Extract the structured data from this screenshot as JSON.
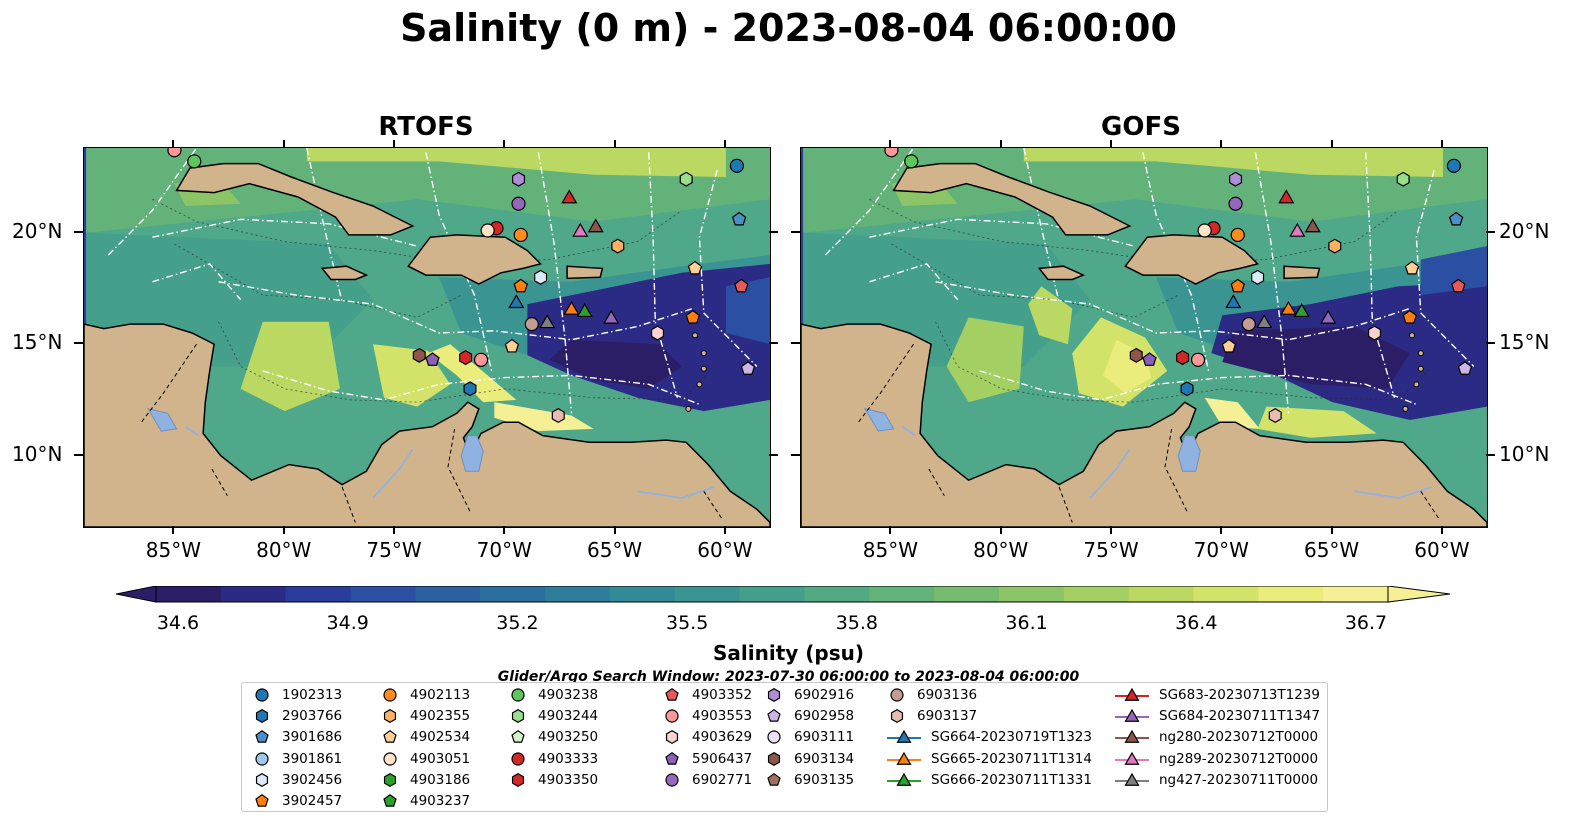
{
  "title": "Salinity (0 m) - 2023-08-04 06:00:00",
  "panels": [
    {
      "title": "RTOFS"
    },
    {
      "title": "GOFS"
    }
  ],
  "axes": {
    "x_ticks": [
      "85°W",
      "80°W",
      "75°W",
      "70°W",
      "65°W",
      "60°W"
    ],
    "y_ticks": [
      "20°N",
      "15°N",
      "10°N"
    ]
  },
  "colorbar": {
    "label": "Salinity (psu)",
    "ticks": [
      "34.6",
      "34.9",
      "35.2",
      "35.5",
      "35.8",
      "36.1",
      "36.4",
      "36.7"
    ],
    "colors": [
      "#2c1e66",
      "#2b2b86",
      "#2a3c9c",
      "#2b4fa2",
      "#2b60a1",
      "#2c6f9e",
      "#2f7d9b",
      "#338a97",
      "#3a9592",
      "#45a08b",
      "#52a983",
      "#62b27a",
      "#75bc70",
      "#8bc567",
      "#a3cf63",
      "#bbd962",
      "#d3e36a",
      "#eaec7c",
      "#f5ef95"
    ]
  },
  "search_window": "Glider/Argo Search Window: 2023-07-30 06:00:00 to 2023-08-04 06:00:00",
  "legend": [
    {
      "label": "1902313",
      "marker": "circle",
      "color": "#1f77b4"
    },
    {
      "label": "2903766",
      "marker": "hexagon",
      "color": "#1f77b4"
    },
    {
      "label": "3901686",
      "marker": "pentagon",
      "color": "#4a90c8"
    },
    {
      "label": "3901861",
      "marker": "circle",
      "color": "#9ec9ec"
    },
    {
      "label": "3902456",
      "marker": "hexagon",
      "color": "#dcebf7"
    },
    {
      "label": "3902457",
      "marker": "pentagon",
      "color": "#ff7f0e"
    },
    {
      "label": "4902113",
      "marker": "circle",
      "color": "#ff8c1a"
    },
    {
      "label": "4902355",
      "marker": "hexagon",
      "color": "#ffb062"
    },
    {
      "label": "4902534",
      "marker": "pentagon",
      "color": "#ffcf95"
    },
    {
      "label": "4903051",
      "marker": "circle",
      "color": "#ffe5c8"
    },
    {
      "label": "4903186",
      "marker": "hexagon",
      "color": "#2ca02c"
    },
    {
      "label": "4903237",
      "marker": "pentagon",
      "color": "#2ca02c"
    },
    {
      "label": "4903238",
      "marker": "circle",
      "color": "#5fc65c"
    },
    {
      "label": "4903244",
      "marker": "hexagon",
      "color": "#98df8a"
    },
    {
      "label": "4903250",
      "marker": "pentagon",
      "color": "#d2f2c7"
    },
    {
      "label": "4903333",
      "marker": "circle",
      "color": "#d62728"
    },
    {
      "label": "4903350",
      "marker": "hexagon",
      "color": "#d62728"
    },
    {
      "label": "4903352",
      "marker": "pentagon",
      "color": "#e85a5a"
    },
    {
      "label": "4903553",
      "marker": "circle",
      "color": "#ff9896"
    },
    {
      "label": "4903629",
      "marker": "hexagon",
      "color": "#ffd2d1"
    },
    {
      "label": "5906437",
      "marker": "pentagon",
      "color": "#8a5fb8"
    },
    {
      "label": "6902771",
      "marker": "circle",
      "color": "#9467bd"
    },
    {
      "label": "6902916",
      "marker": "hexagon",
      "color": "#b18cd6"
    },
    {
      "label": "6902958",
      "marker": "pentagon",
      "color": "#cdb5e8"
    },
    {
      "label": "6903111",
      "marker": "circle",
      "color": "#ebe0f5"
    },
    {
      "label": "6903134",
      "marker": "hexagon",
      "color": "#8c564b"
    },
    {
      "label": "6903135",
      "marker": "pentagon",
      "color": "#a07060"
    },
    {
      "label": "6903136",
      "marker": "circle",
      "color": "#c49c94"
    },
    {
      "label": "6903137",
      "marker": "hexagon",
      "color": "#e8bcb0"
    },
    {
      "label": "SG664-20230719T1323",
      "marker": "triangle",
      "color": "#1f77b4",
      "line": true
    },
    {
      "label": "SG665-20230711T1314",
      "marker": "triangle",
      "color": "#ff7f0e",
      "line": true
    },
    {
      "label": "SG666-20230711T1331",
      "marker": "triangle",
      "color": "#2ca02c",
      "line": true
    },
    {
      "label": "SG683-20230713T1239",
      "marker": "triangle",
      "color": "#d62728",
      "line": true
    },
    {
      "label": "SG684-20230711T1347",
      "marker": "triangle",
      "color": "#9467bd",
      "line": true
    },
    {
      "label": "ng280-20230712T0000",
      "marker": "triangle",
      "color": "#8c564b",
      "line": true
    },
    {
      "label": "ng289-20230712T0000",
      "marker": "triangle",
      "color": "#e377c2",
      "line": true
    },
    {
      "label": "ng427-20230711T0000",
      "marker": "triangle",
      "color": "#7f7f7f",
      "line": true
    }
  ],
  "markers": [
    {
      "label": "1902313",
      "lon": -59.5,
      "lat": 23.0
    },
    {
      "label": "3901686",
      "lon": -59.4,
      "lat": 20.6
    },
    {
      "label": "4903238",
      "lon": -84.1,
      "lat": 23.2
    },
    {
      "label": "4903553",
      "lon": -85.0,
      "lat": 23.7
    },
    {
      "label": "4903244",
      "lon": -61.8,
      "lat": 22.4
    },
    {
      "label": "6902916",
      "lon": -69.4,
      "lat": 22.4
    },
    {
      "label": "6902771",
      "lon": -69.4,
      "lat": 21.3
    },
    {
      "label": "SG683-20230713T1239",
      "lon": -67.1,
      "lat": 21.6
    },
    {
      "label": "4903333",
      "lon": -70.4,
      "lat": 20.2
    },
    {
      "label": "4903051",
      "lon": -70.8,
      "lat": 20.1
    },
    {
      "label": "4902113",
      "lon": -69.3,
      "lat": 19.9
    },
    {
      "label": "ng289-20230712T0000",
      "lon": -66.6,
      "lat": 20.1
    },
    {
      "label": "ng280-20230712T0000",
      "lon": -65.9,
      "lat": 20.3
    },
    {
      "label": "4902355",
      "lon": -64.9,
      "lat": 19.4
    },
    {
      "label": "4902534",
      "lon": -61.4,
      "lat": 18.4
    },
    {
      "label": "3902456",
      "lon": -68.4,
      "lat": 18.0
    },
    {
      "label": "3902457",
      "lon": -69.3,
      "lat": 17.6
    },
    {
      "label": "4903352",
      "lon": -59.3,
      "lat": 17.6
    },
    {
      "label": "SG664-20230719T1323",
      "lon": -69.5,
      "lat": 16.9
    },
    {
      "label": "SG665-20230711T1314",
      "lon": -67.0,
      "lat": 16.6
    },
    {
      "label": "SG666-20230711T1331",
      "lon": -66.4,
      "lat": 16.5
    },
    {
      "label": "SG684-20230711T1347",
      "lon": -65.2,
      "lat": 16.2
    },
    {
      "label": "6903136",
      "lon": -68.8,
      "lat": 15.9
    },
    {
      "label": "ng427-20230711T0000",
      "lon": -68.1,
      "lat": 16.0
    },
    {
      "label": "4903629",
      "lon": -63.1,
      "lat": 15.5
    },
    {
      "label": "4902534",
      "lon": -69.7,
      "lat": 14.9
    },
    {
      "label": "6903134",
      "lon": -73.9,
      "lat": 14.5
    },
    {
      "label": "5906437",
      "lon": -73.3,
      "lat": 14.3
    },
    {
      "label": "4903350",
      "lon": -71.8,
      "lat": 14.4
    },
    {
      "label": "4903553",
      "lon": -71.1,
      "lat": 14.3
    },
    {
      "label": "2903766",
      "lon": -71.6,
      "lat": 13.0
    },
    {
      "label": "6903137",
      "lon": -67.6,
      "lat": 11.8
    },
    {
      "label": "6902958",
      "lon": -59.0,
      "lat": 13.9
    },
    {
      "label": "3902457",
      "lon": -61.5,
      "lat": 16.2
    }
  ]
}
